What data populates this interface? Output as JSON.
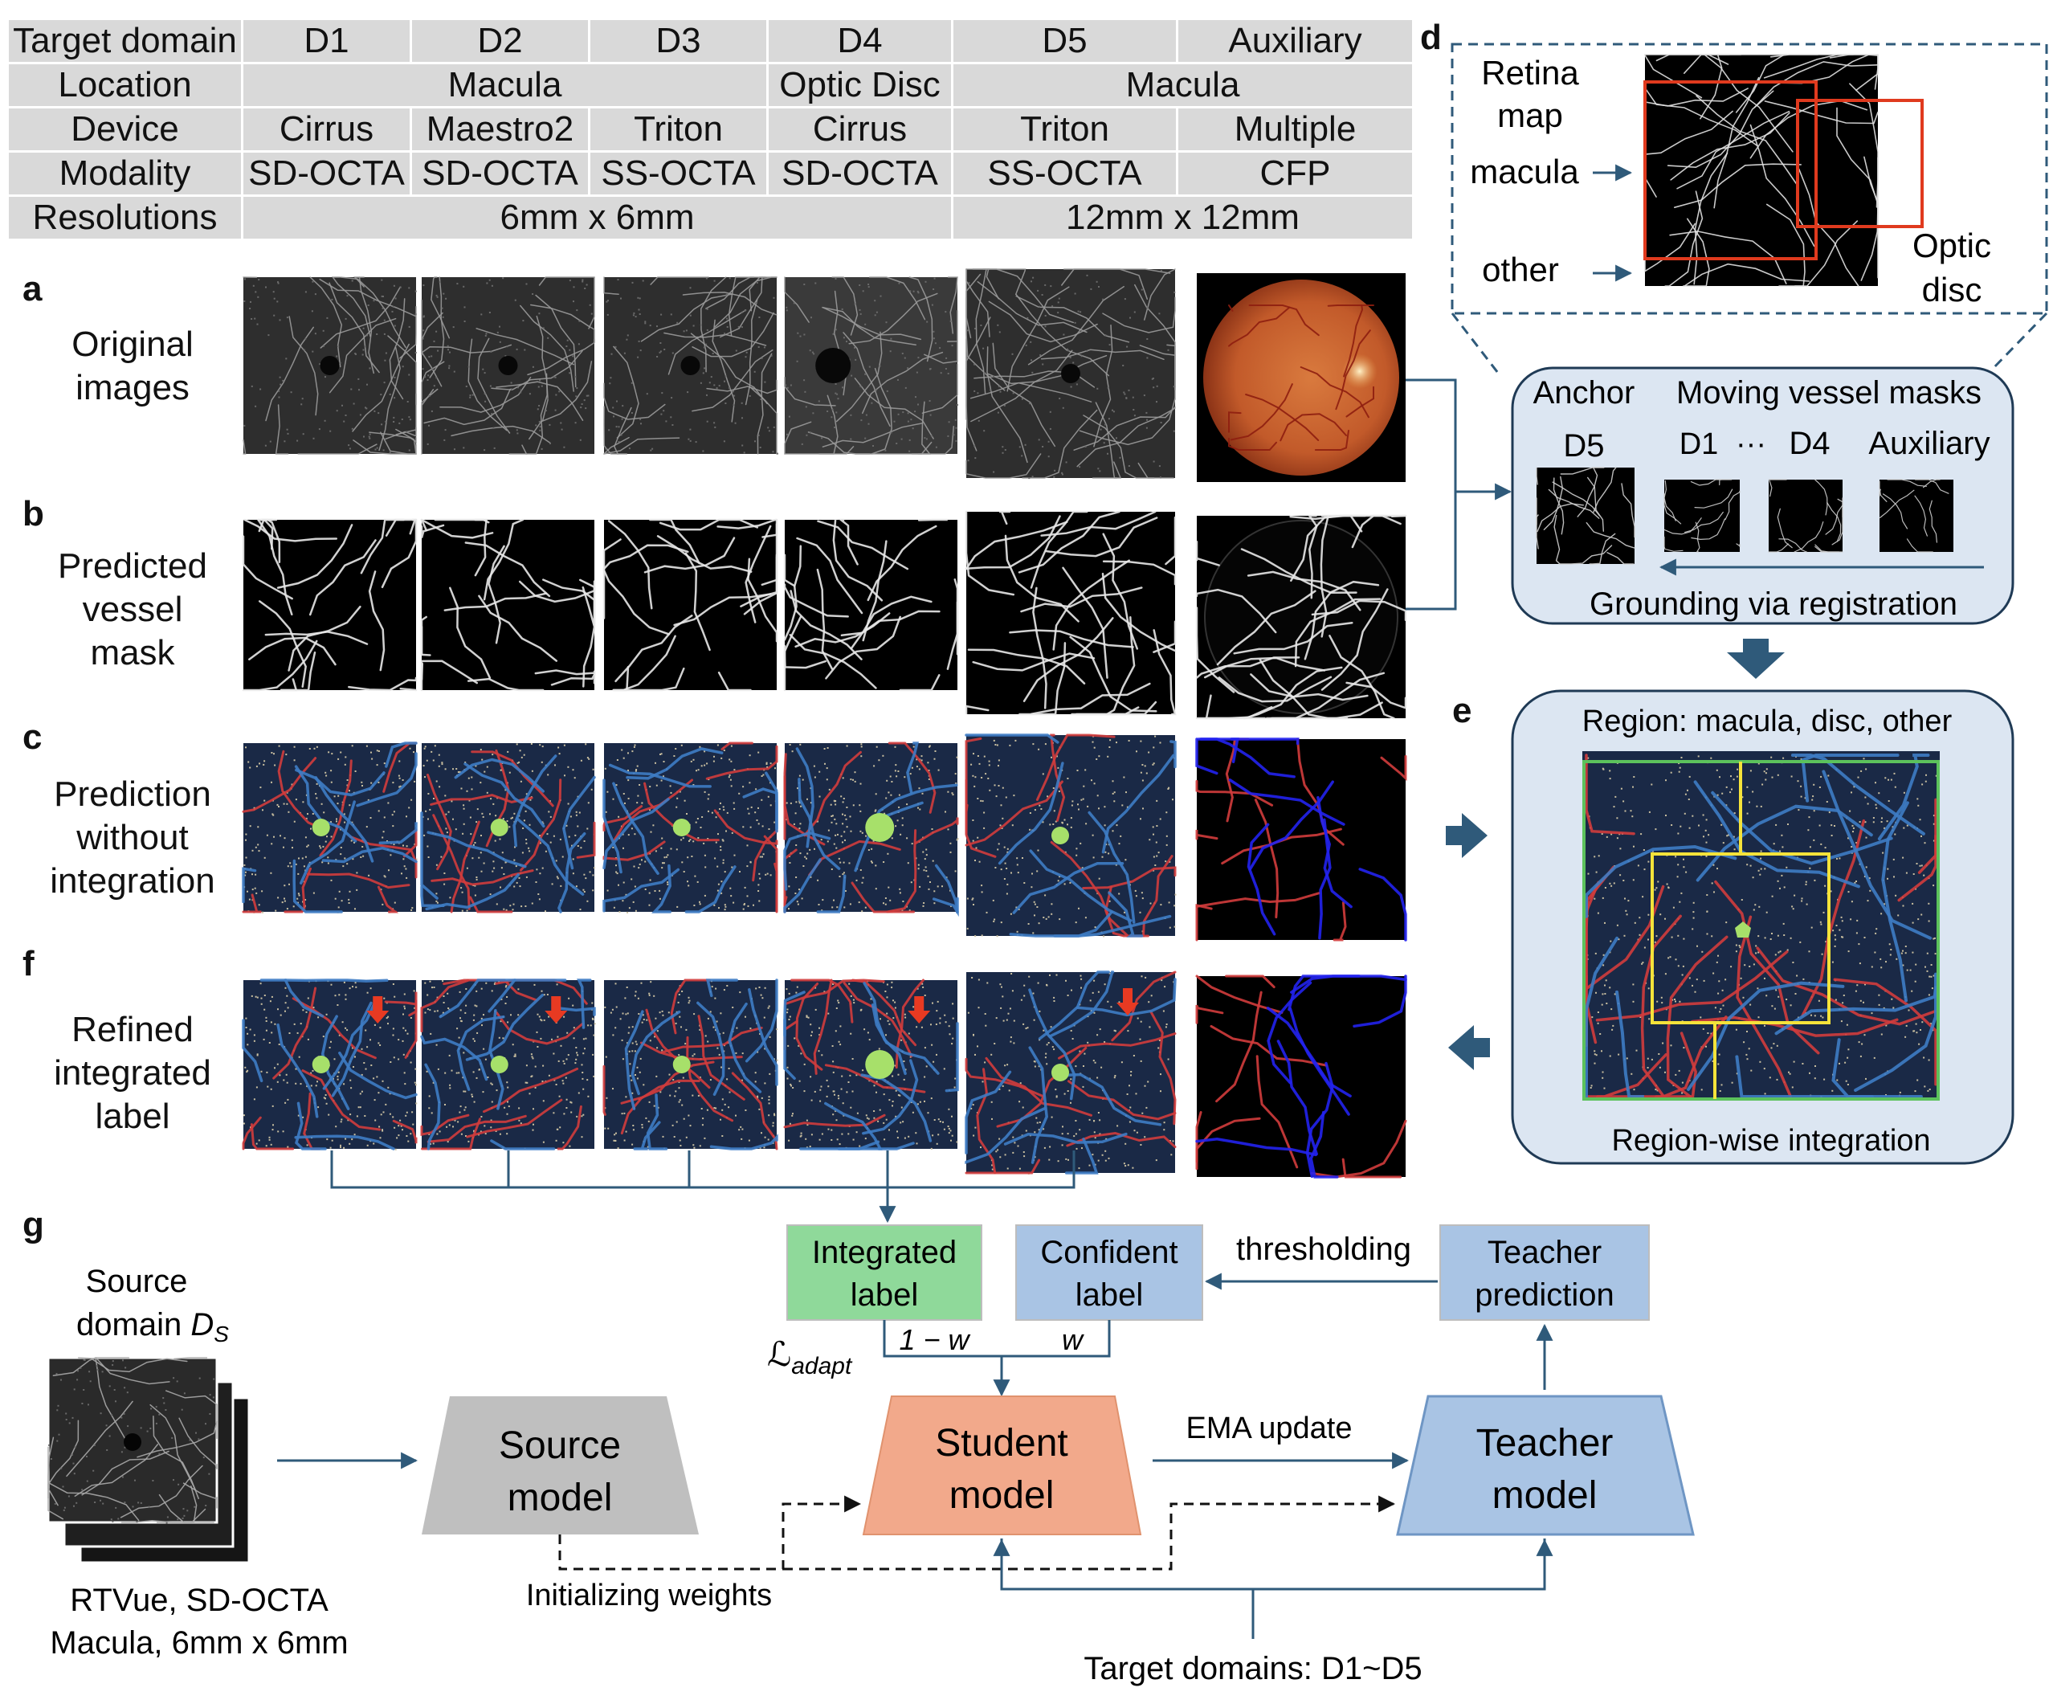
{
  "table": {
    "header": [
      "Target domain",
      "D1",
      "D2",
      "D3",
      "D4",
      "D5",
      "Auxiliary"
    ],
    "location": {
      "label": "Location",
      "macula_left": "Macula",
      "optic_disc": "Optic Disc",
      "macula_right": "Macula"
    },
    "device": {
      "label": "Device",
      "values": [
        "Cirrus",
        "Maestro2",
        "Triton",
        "Cirrus",
        "Triton",
        "Multiple"
      ]
    },
    "modality": {
      "label": "Modality",
      "values": [
        "SD-OCTA",
        "SD-OCTA",
        "SS-OCTA",
        "SD-OCTA",
        "SS-OCTA",
        "CFP"
      ]
    },
    "resolutions": {
      "label": "Resolutions",
      "left": "6mm x 6mm",
      "right": "12mm x 12mm"
    }
  },
  "panels": {
    "a": {
      "letter": "a",
      "line1": "Original",
      "line2": "images"
    },
    "b": {
      "letter": "b",
      "line1": "Predicted",
      "line2": "vessel",
      "line3": "mask"
    },
    "c": {
      "letter": "c",
      "line1": "Prediction",
      "line2": "without",
      "line3": "integration"
    },
    "f": {
      "letter": "f",
      "line1": "Refined",
      "line2": "integrated",
      "line3": "label"
    },
    "g": {
      "letter": "g"
    },
    "d": {
      "letter": "d"
    },
    "e": {
      "letter": "e"
    }
  },
  "retina_map": {
    "title1": "Retina",
    "title2": "map",
    "macula": "macula",
    "other": "other",
    "optic1": "Optic",
    "optic2": "disc"
  },
  "registration_box": {
    "anchor": "Anchor",
    "moving": "Moving vessel masks",
    "d5": "D5",
    "d1": "D1",
    "dots": "···",
    "d4": "D4",
    "auxiliary": "Auxiliary",
    "grounding": "Grounding via registration"
  },
  "integration_box": {
    "region": "Region: macula, disc, other",
    "footer": "Region-wise integration"
  },
  "pipeline": {
    "integrated_label": {
      "line1": "Integrated",
      "line2": "label"
    },
    "confident_label": {
      "line1": "Confident",
      "line2": "label"
    },
    "thresholding": "thresholding",
    "teacher_prediction": {
      "line1": "Teacher",
      "line2": "prediction"
    },
    "loss": "ℒ",
    "loss_sub": "adapt",
    "one_minus_w": "1 − w",
    "w": "w",
    "source_domain": "Source",
    "source_domain2": "domain ",
    "ds": "D",
    "ds_sub": "S",
    "source_model": {
      "line1": "Source",
      "line2": "model"
    },
    "student_model": {
      "line1": "Student",
      "line2": "model"
    },
    "teacher_model": {
      "line1": "Teacher",
      "line2": "model"
    },
    "ema": "EMA update",
    "init": "Initializing weights",
    "source_desc1": "RTVue, SD-OCTA",
    "source_desc2": "Macula, 6mm x 6mm",
    "targets": "Target domains: D1~D5"
  },
  "colors": {
    "table_bg": "#d9d9d9",
    "panel_blue_bg": "#dce6f2",
    "panel_border": "#1f3a55",
    "arrow": "#2f5a7a",
    "integrated_green": "#8fd99a",
    "confident_blue": "#a9c4e4",
    "source_gray": "#bfbfbf",
    "student_orange": "#f2a98b",
    "teacher_blue": "#a9c4e4",
    "vessel_red": "#d23c3c",
    "vessel_blue": "#3e7cc4",
    "label_bg": "#1a2946",
    "fovea_green": "#a7e06a",
    "red_box": "#e03a1e",
    "yellow_box": "#f5e33a",
    "green_box": "#5cc25c"
  }
}
